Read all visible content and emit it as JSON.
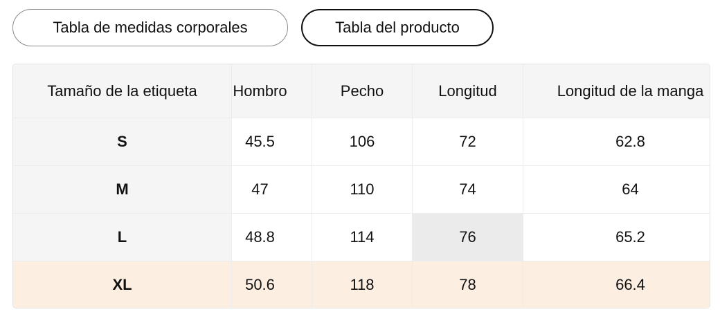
{
  "tabs": [
    "Tabla de medidas corporales",
    "Tabla del producto"
  ],
  "table": {
    "headers": [
      "Tamaño de la etiqueta",
      "Hombro",
      "Pecho",
      "Longitud",
      "Longitud de la manga"
    ],
    "rows": [
      [
        "S",
        "45.5",
        "106",
        "72",
        "62.8"
      ],
      [
        "M",
        "47",
        "110",
        "74",
        "64"
      ],
      [
        "L",
        "48.8",
        "114",
        "76",
        "65.2"
      ],
      [
        "XL",
        "50.6",
        "118",
        "78",
        "66.4"
      ]
    ]
  }
}
